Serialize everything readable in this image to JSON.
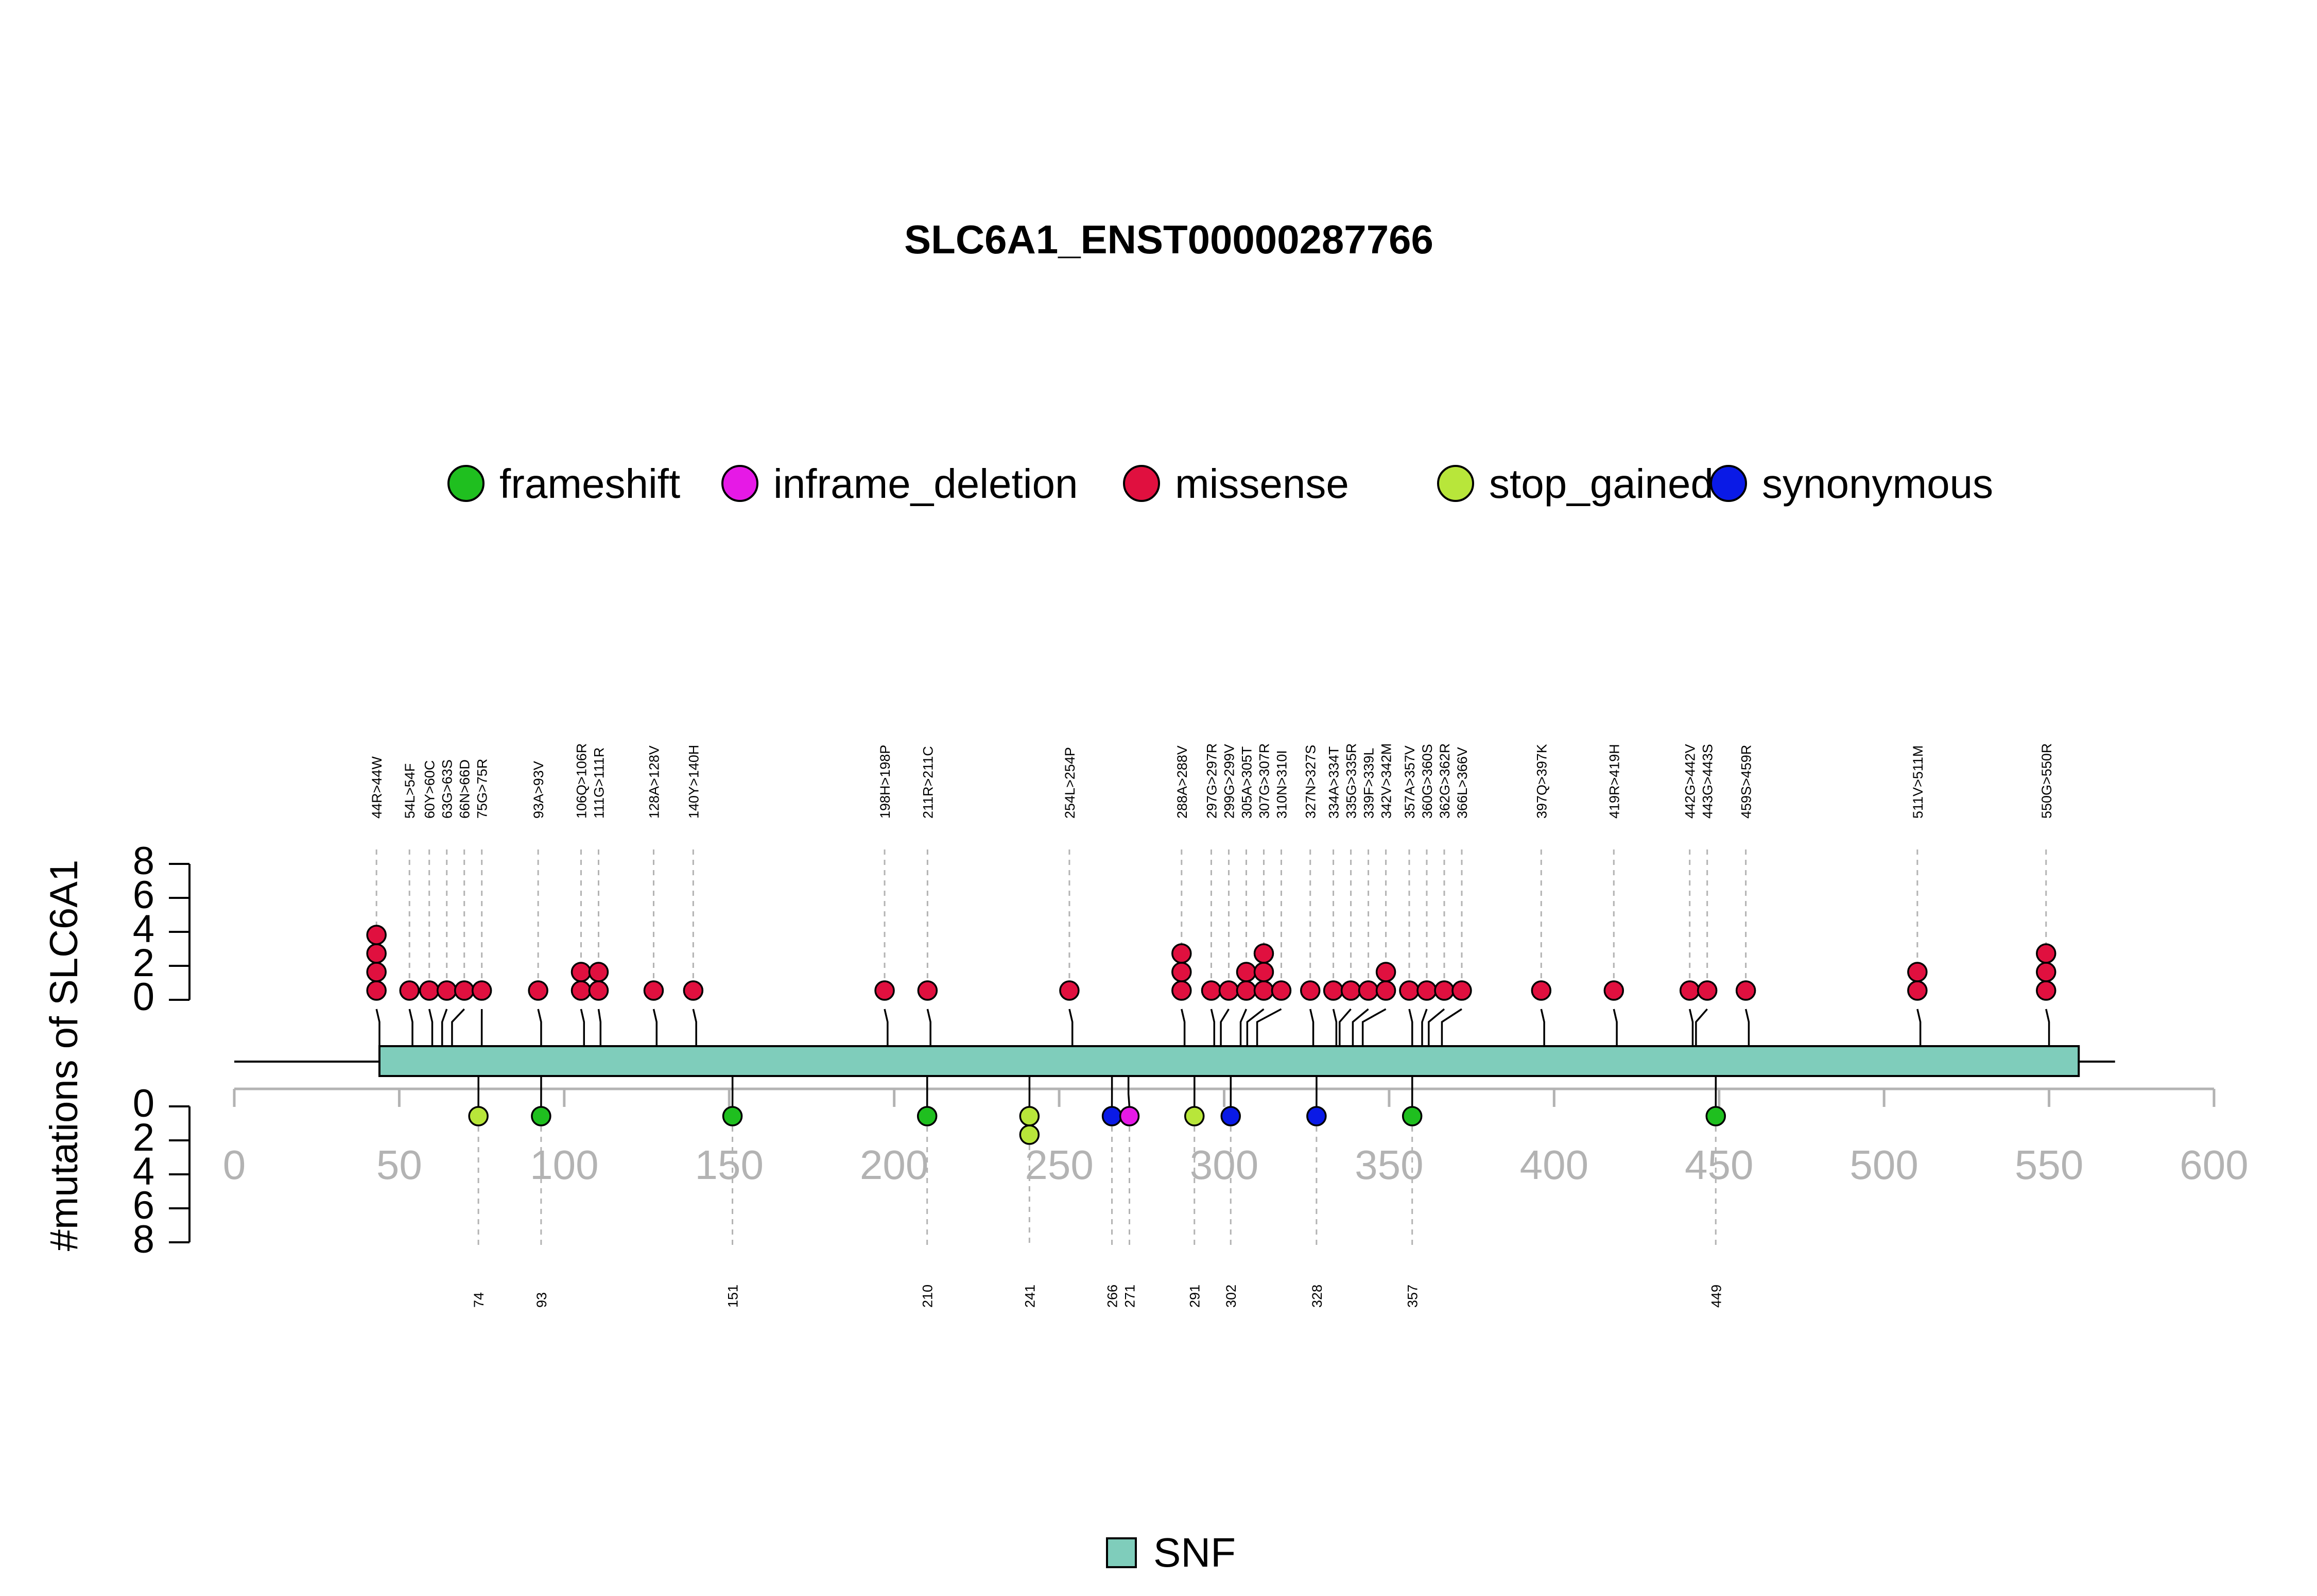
{
  "chart_data": {
    "type": "lollipop",
    "title": "SLC6A1_ENST00000287766",
    "ylabel": "#mutations of SLC6A1",
    "xlim": [
      0,
      600
    ],
    "x_ticks": [
      0,
      50,
      100,
      150,
      200,
      250,
      300,
      350,
      400,
      450,
      500,
      550,
      600
    ],
    "y_ticks": [
      0,
      2,
      4,
      6,
      8
    ],
    "ylim": [
      0,
      8
    ],
    "protein_length": 570,
    "domains": [
      {
        "name": "SNF",
        "start": 44,
        "end": 559,
        "color": "#7fcdbb"
      }
    ],
    "legend": [
      {
        "label": "frameshift",
        "color": "#1fbf1f"
      },
      {
        "label": "inframe_deletion",
        "color": "#e619e6"
      },
      {
        "label": "missense",
        "color": "#e0103f"
      },
      {
        "label": "stop_gained",
        "color": "#b8e63a"
      },
      {
        "label": "synonymous",
        "color": "#0a1ae6"
      }
    ],
    "domain_legend": [
      {
        "label": "SNF",
        "color": "#7fcdbb"
      }
    ],
    "top_mutations": [
      {
        "label": "44R>44W",
        "pos": 44,
        "count": 4,
        "type": "missense"
      },
      {
        "label": "54L>54F",
        "pos": 54,
        "count": 1,
        "type": "missense"
      },
      {
        "label": "60Y>60C",
        "pos": 60,
        "count": 1,
        "type": "missense"
      },
      {
        "label": "63G>63S",
        "pos": 63,
        "count": 1,
        "type": "missense"
      },
      {
        "label": "66N>66D",
        "pos": 66,
        "count": 1,
        "type": "missense"
      },
      {
        "label": "75G>75R",
        "pos": 75,
        "count": 1,
        "type": "missense"
      },
      {
        "label": "93A>93V",
        "pos": 93,
        "count": 1,
        "type": "missense"
      },
      {
        "label": "106Q>106R",
        "pos": 106,
        "count": 2,
        "type": "missense"
      },
      {
        "label": "111G>111R",
        "pos": 111,
        "count": 2,
        "type": "missense"
      },
      {
        "label": "128A>128V",
        "pos": 128,
        "count": 1,
        "type": "missense"
      },
      {
        "label": "140Y>140H",
        "pos": 140,
        "count": 1,
        "type": "missense"
      },
      {
        "label": "198H>198P",
        "pos": 198,
        "count": 1,
        "type": "missense"
      },
      {
        "label": "211R>211C",
        "pos": 211,
        "count": 1,
        "type": "missense"
      },
      {
        "label": "254L>254P",
        "pos": 254,
        "count": 1,
        "type": "missense"
      },
      {
        "label": "288A>288V",
        "pos": 288,
        "count": 3,
        "type": "missense"
      },
      {
        "label": "297G>297R",
        "pos": 297,
        "count": 1,
        "type": "missense"
      },
      {
        "label": "299G>299V",
        "pos": 299,
        "count": 1,
        "type": "missense"
      },
      {
        "label": "305A>305T",
        "pos": 305,
        "count": 2,
        "type": "missense"
      },
      {
        "label": "307G>307R",
        "pos": 307,
        "count": 3,
        "type": "missense"
      },
      {
        "label": "310N>310I",
        "pos": 310,
        "count": 1,
        "type": "missense"
      },
      {
        "label": "327N>327S",
        "pos": 327,
        "count": 1,
        "type": "missense"
      },
      {
        "label": "334A>334T",
        "pos": 334,
        "count": 1,
        "type": "missense"
      },
      {
        "label": "335G>335R",
        "pos": 335,
        "count": 1,
        "type": "missense"
      },
      {
        "label": "339F>339L",
        "pos": 339,
        "count": 1,
        "type": "missense"
      },
      {
        "label": "342V>342M",
        "pos": 342,
        "count": 2,
        "type": "missense"
      },
      {
        "label": "357A>357V",
        "pos": 357,
        "count": 1,
        "type": "missense"
      },
      {
        "label": "360G>360S",
        "pos": 360,
        "count": 1,
        "type": "missense"
      },
      {
        "label": "362G>362R",
        "pos": 362,
        "count": 1,
        "type": "missense"
      },
      {
        "label": "366L>366V",
        "pos": 366,
        "count": 1,
        "type": "missense"
      },
      {
        "label": "397Q>397K",
        "pos": 397,
        "count": 1,
        "type": "missense"
      },
      {
        "label": "419R>419H",
        "pos": 419,
        "count": 1,
        "type": "missense"
      },
      {
        "label": "442G>442V",
        "pos": 442,
        "count": 1,
        "type": "missense"
      },
      {
        "label": "443G>443S",
        "pos": 443,
        "count": 1,
        "type": "missense"
      },
      {
        "label": "459S>459R",
        "pos": 459,
        "count": 1,
        "type": "missense"
      },
      {
        "label": "511V>511M",
        "pos": 511,
        "count": 2,
        "type": "missense"
      },
      {
        "label": "550G>550R",
        "pos": 550,
        "count": 3,
        "type": "missense"
      }
    ],
    "bottom_mutations": [
      {
        "label": "74",
        "pos": 74,
        "count": 1,
        "type": "stop_gained"
      },
      {
        "label": "93",
        "pos": 93,
        "count": 1,
        "type": "frameshift"
      },
      {
        "label": "151",
        "pos": 151,
        "count": 1,
        "type": "frameshift"
      },
      {
        "label": "210",
        "pos": 210,
        "count": 1,
        "type": "frameshift"
      },
      {
        "label": "241",
        "pos": 241,
        "count": 2,
        "type": "stop_gained"
      },
      {
        "label": "266",
        "pos": 266,
        "count": 1,
        "type": "synonymous"
      },
      {
        "label": "271",
        "pos": 271,
        "count": 1,
        "type": "inframe_deletion"
      },
      {
        "label": "291",
        "pos": 291,
        "count": 1,
        "type": "stop_gained"
      },
      {
        "label": "302",
        "pos": 302,
        "count": 1,
        "type": "synonymous"
      },
      {
        "label": "328",
        "pos": 328,
        "count": 1,
        "type": "synonymous"
      },
      {
        "label": "357",
        "pos": 357,
        "count": 1,
        "type": "frameshift"
      },
      {
        "label": "449",
        "pos": 449,
        "count": 1,
        "type": "frameshift"
      }
    ]
  }
}
